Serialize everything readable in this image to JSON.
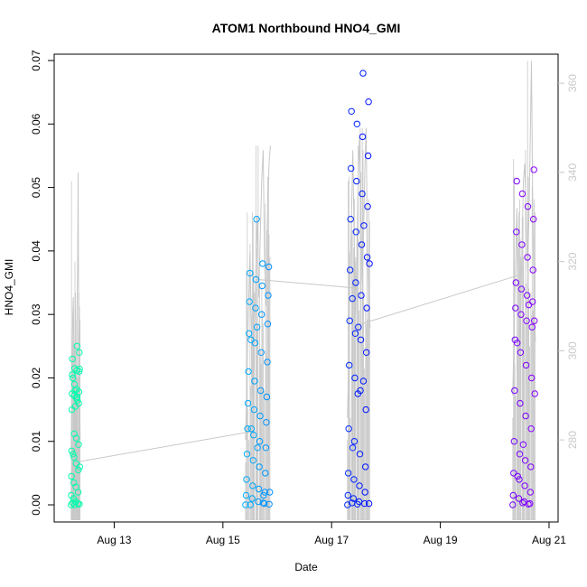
{
  "chart_data": {
    "type": "scatter",
    "title": "ATOM1 Northbound HNO4_GMI",
    "xlabel": "Date",
    "ylabel": "HNO4_GMI",
    "x_ticks": [
      {
        "date": "2016-08-13",
        "label": "Aug 13"
      },
      {
        "date": "2016-08-15",
        "label": "Aug 15"
      },
      {
        "date": "2016-08-17",
        "label": "Aug 17"
      },
      {
        "date": "2016-08-19",
        "label": "Aug 19"
      },
      {
        "date": "2016-08-21",
        "label": "Aug 21"
      }
    ],
    "xlim": [
      "2016-08-11T21:30:00",
      "2016-08-21T04:00:00"
    ],
    "ylim": [
      -0.0027,
      0.071
    ],
    "y_ticks": [
      0.0,
      0.01,
      0.02,
      0.03,
      0.04,
      0.05,
      0.06,
      0.07
    ],
    "y_tick_labels": [
      "0.00",
      "0.01",
      "0.02",
      "0.03",
      "0.04",
      "0.05",
      "0.06",
      "0.07"
    ],
    "y2_ticks": [
      280,
      300,
      320,
      340,
      360
    ],
    "y2lim": [
      261.6,
      366.5
    ],
    "point_color_scale": [
      "#00ffaa",
      "#00c8ff",
      "#0000ff",
      "#8800ff"
    ],
    "secondary_line_color": "#c8c8c8",
    "grid": false,
    "flights": [
      {
        "start": "2016-08-12T05:00:00",
        "end": "2016-08-12T09:00:00",
        "hno4": [
          0.0,
          0.0002,
          0.0005,
          0.001,
          0.0015,
          0.002,
          0.0028,
          0.0035,
          0.0045,
          0.0055,
          0.0065,
          0.0075,
          0.0085,
          0.0095,
          0.0105,
          0.0112,
          0.015,
          0.016,
          0.0168,
          0.0172,
          0.0175,
          0.0178,
          0.0182,
          0.019,
          0.0205,
          0.021,
          0.0212,
          0.0215,
          0.023,
          0.024,
          0.025,
          0.0,
          0.0003,
          0.0001,
          0.017,
          0.018,
          0.02,
          0.0214,
          0.0165,
          0.0155,
          0.008,
          0.006
        ],
        "secondary": [
          278,
          285,
          298,
          308,
          312,
          300,
          290,
          284,
          276,
          282,
          296,
          310,
          318,
          340,
          306,
          292,
          286,
          280
        ],
        "secondary_peak": 340
      },
      {
        "start": "2016-08-15T10:00:00",
        "end": "2016-08-15T21:00:00",
        "hno4": [
          0.0,
          0.0002,
          0.0005,
          0.001,
          0.0015,
          0.002,
          0.0025,
          0.003,
          0.004,
          0.005,
          0.006,
          0.007,
          0.008,
          0.009,
          0.01,
          0.011,
          0.012,
          0.013,
          0.014,
          0.015,
          0.016,
          0.017,
          0.018,
          0.0195,
          0.021,
          0.0225,
          0.024,
          0.0255,
          0.027,
          0.0285,
          0.03,
          0.031,
          0.032,
          0.033,
          0.0345,
          0.0355,
          0.0365,
          0.0375,
          0.038,
          0.045,
          0.0,
          0.0001,
          0.0003,
          0.028,
          0.026,
          0.002,
          0.0015,
          0.009,
          0.012
        ],
        "secondary": [
          280,
          295,
          310,
          322,
          305,
          290,
          302,
          318,
          330,
          312,
          325,
          338,
          345,
          320,
          310,
          330,
          342,
          346
        ],
        "secondary_peak": 346
      },
      {
        "start": "2016-08-17T07:00:00",
        "end": "2016-08-17T17:00:00",
        "hno4": [
          0.0,
          0.0002,
          0.0005,
          0.001,
          0.0015,
          0.002,
          0.003,
          0.004,
          0.005,
          0.006,
          0.008,
          0.01,
          0.012,
          0.015,
          0.018,
          0.02,
          0.022,
          0.024,
          0.026,
          0.027,
          0.029,
          0.031,
          0.033,
          0.035,
          0.037,
          0.039,
          0.041,
          0.043,
          0.045,
          0.047,
          0.049,
          0.051,
          0.053,
          0.055,
          0.058,
          0.06,
          0.062,
          0.0635,
          0.068,
          0.0001,
          0.0003,
          0.0002,
          0.0195,
          0.0175,
          0.0325,
          0.038,
          0.044,
          0.028,
          0.009
        ],
        "secondary": [
          285,
          300,
          318,
          330,
          345,
          325,
          308,
          320,
          338,
          348,
          330,
          315,
          325,
          340,
          350,
          322,
          310,
          305
        ],
        "secondary_peak": 350
      },
      {
        "start": "2016-08-20T08:00:00",
        "end": "2016-08-20T18:00:00",
        "hno4": [
          0.0,
          0.0002,
          0.0005,
          0.001,
          0.0015,
          0.002,
          0.003,
          0.004,
          0.005,
          0.006,
          0.007,
          0.008,
          0.01,
          0.012,
          0.014,
          0.016,
          0.018,
          0.02,
          0.022,
          0.024,
          0.026,
          0.028,
          0.029,
          0.03,
          0.031,
          0.032,
          0.033,
          0.034,
          0.035,
          0.037,
          0.039,
          0.041,
          0.043,
          0.045,
          0.047,
          0.049,
          0.051,
          0.0528,
          0.0001,
          0.0003,
          0.0255,
          0.029,
          0.0315,
          0.0095,
          0.0045,
          0.0175
        ],
        "secondary": [
          290,
          305,
          318,
          332,
          320,
          300,
          310,
          325,
          338,
          342,
          330,
          318,
          328,
          345,
          365,
          330,
          312,
          302
        ],
        "secondary_peak": 365
      }
    ],
    "secondary_connectors": [
      {
        "from": "2016-08-12T07:00:00",
        "from_value": 275,
        "to": "2016-08-15T14:00:00",
        "to_value": 282
      },
      {
        "from": "2016-08-15T15:00:00",
        "from_value": 316,
        "to": "2016-08-17T12:00:00",
        "to_value": 314
      },
      {
        "from": "2016-08-17T13:00:00",
        "from_value": 306,
        "to": "2016-08-20T11:00:00",
        "to_value": 317
      }
    ]
  }
}
